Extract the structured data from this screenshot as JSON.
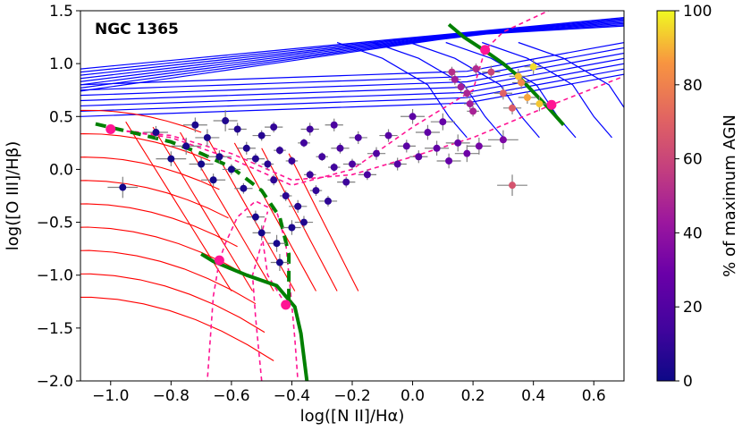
{
  "chart_data": {
    "type": "scatter",
    "title": "NGC 1365",
    "xlabel": "log([N II]/Hα)",
    "ylabel": "log([O III]/Hβ)",
    "xlim": [
      -1.1,
      0.7
    ],
    "ylim": [
      -2.0,
      1.5
    ],
    "xticks": [
      "−1.0",
      "−0.8",
      "−0.6",
      "−0.4",
      "−0.2",
      "0.0",
      "0.2",
      "0.4",
      "0.6"
    ],
    "xtick_values": [
      -1.0,
      -0.8,
      -0.6,
      -0.4,
      -0.2,
      0.0,
      0.2,
      0.4,
      0.6
    ],
    "yticks": [
      "−2.0",
      "−1.5",
      "−1.0",
      "−0.5",
      "0.0",
      "0.5",
      "1.0",
      "1.5"
    ],
    "ytick_values": [
      -2.0,
      -1.5,
      -1.0,
      -0.5,
      0.0,
      0.5,
      1.0,
      1.5
    ],
    "colorbar": {
      "label": "% of maximum AGN",
      "ticks": [
        "0",
        "20",
        "40",
        "60",
        "80",
        "100"
      ],
      "tick_values": [
        0,
        20,
        40,
        60,
        80,
        100
      ],
      "colormap": "plasma"
    },
    "colors": {
      "starburst_grid": "#ff0000",
      "agn_grid": "#0000ff",
      "mixing_curves": "#ff1493",
      "mixing_markers": "#ff1493",
      "green_sequence": "#008000",
      "error_bars": "#808080"
    },
    "green_curves": [
      {
        "style": "solid",
        "points": [
          [
            -0.7,
            -0.8
          ],
          [
            -0.66,
            -0.87
          ],
          [
            -0.55,
            -1.0
          ],
          [
            -0.45,
            -1.1
          ],
          [
            -0.39,
            -1.3
          ],
          [
            -0.37,
            -1.55
          ],
          [
            -0.35,
            -2.0
          ]
        ]
      },
      {
        "style": "dashed",
        "points": [
          [
            -1.05,
            0.43
          ],
          [
            -0.9,
            0.33
          ],
          [
            -0.8,
            0.26
          ],
          [
            -0.7,
            0.15
          ],
          [
            -0.6,
            0.02
          ],
          [
            -0.5,
            -0.2
          ],
          [
            -0.44,
            -0.45
          ],
          [
            -0.41,
            -0.8
          ],
          [
            -0.41,
            -1.25
          ]
        ]
      },
      {
        "style": "solid",
        "points": [
          [
            0.12,
            1.37
          ],
          [
            0.17,
            1.25
          ],
          [
            0.24,
            1.12
          ],
          [
            0.3,
            1.0
          ],
          [
            0.35,
            0.88
          ],
          [
            0.4,
            0.73
          ],
          [
            0.45,
            0.58
          ],
          [
            0.5,
            0.42
          ]
        ]
      }
    ],
    "mixing_points": [
      {
        "x": -1.0,
        "y": 0.38
      },
      {
        "x": -0.64,
        "y": -0.86
      },
      {
        "x": -0.42,
        "y": -1.28
      },
      {
        "x": 0.24,
        "y": 1.13
      },
      {
        "x": 0.46,
        "y": 0.61
      }
    ],
    "mixing_lines": [
      [
        [
          -1.0,
          0.38
        ],
        [
          -0.8,
          0.3
        ],
        [
          -0.6,
          0.1
        ],
        [
          -0.4,
          -0.15
        ],
        [
          -0.2,
          0.0
        ],
        [
          0.0,
          0.4
        ],
        [
          0.2,
          0.75
        ],
        [
          0.24,
          1.13
        ],
        [
          0.3,
          1.3
        ],
        [
          0.45,
          1.5
        ]
      ],
      [
        [
          -1.0,
          0.38
        ],
        [
          -0.8,
          0.32
        ],
        [
          -0.6,
          0.15
        ],
        [
          -0.4,
          -0.1
        ],
        [
          -0.2,
          -0.05
        ],
        [
          0.0,
          0.12
        ],
        [
          0.2,
          0.3
        ],
        [
          0.46,
          0.61
        ],
        [
          0.7,
          0.88
        ]
      ],
      [
        [
          -0.64,
          -0.86
        ],
        [
          -0.62,
          -0.7
        ],
        [
          -0.58,
          -0.45
        ],
        [
          -0.52,
          -0.3
        ],
        [
          -0.45,
          -0.4
        ],
        [
          -0.42,
          -0.7
        ],
        [
          -0.4,
          -1.28
        ],
        [
          -0.39,
          -1.6
        ],
        [
          -0.38,
          -2.0
        ]
      ],
      [
        [
          -0.64,
          -0.86
        ],
        [
          -0.66,
          -1.2
        ],
        [
          -0.68,
          -2.0
        ]
      ],
      [
        [
          -0.42,
          -1.28
        ],
        [
          -0.48,
          -1.0
        ],
        [
          -0.5,
          -0.6
        ],
        [
          -0.48,
          -0.4
        ]
      ],
      [
        [
          -0.5,
          -2.0
        ],
        [
          -0.52,
          -1.4
        ],
        [
          -0.53,
          -1.0
        ],
        [
          -0.5,
          -0.7
        ]
      ]
    ],
    "series": [
      {
        "points": [
          {
            "x": -0.96,
            "y": -0.17,
            "c": 2,
            "ex": 0.05,
            "ey": 0.1
          },
          {
            "x": -0.75,
            "y": 0.22,
            "c": 3,
            "ex": 0.05,
            "ey": 0.08
          },
          {
            "x": -0.68,
            "y": 0.3,
            "c": 4,
            "ex": 0.04,
            "ey": 0.08
          },
          {
            "x": -0.62,
            "y": 0.46,
            "c": 5,
            "ex": 0.04,
            "ey": 0.1
          },
          {
            "x": -0.58,
            "y": 0.38,
            "c": 6,
            "ex": 0.03,
            "ey": 0.06
          },
          {
            "x": -0.55,
            "y": 0.2,
            "c": 5,
            "ex": 0.03,
            "ey": 0.06
          },
          {
            "x": -0.52,
            "y": 0.1,
            "c": 6,
            "ex": 0.03,
            "ey": 0.05
          },
          {
            "x": -0.5,
            "y": 0.32,
            "c": 7,
            "ex": 0.03,
            "ey": 0.05
          },
          {
            "x": -0.48,
            "y": 0.05,
            "c": 8,
            "ex": 0.02,
            "ey": 0.05
          },
          {
            "x": -0.46,
            "y": -0.1,
            "c": 9,
            "ex": 0.02,
            "ey": 0.05
          },
          {
            "x": -0.44,
            "y": 0.18,
            "c": 10,
            "ex": 0.02,
            "ey": 0.04
          },
          {
            "x": -0.42,
            "y": -0.25,
            "c": 8,
            "ex": 0.02,
            "ey": 0.05
          },
          {
            "x": -0.4,
            "y": 0.08,
            "c": 12,
            "ex": 0.02,
            "ey": 0.04
          },
          {
            "x": -0.38,
            "y": -0.35,
            "c": 6,
            "ex": 0.03,
            "ey": 0.06
          },
          {
            "x": -0.36,
            "y": 0.25,
            "c": 14,
            "ex": 0.02,
            "ey": 0.04
          },
          {
            "x": -0.34,
            "y": -0.05,
            "c": 12,
            "ex": 0.02,
            "ey": 0.04
          },
          {
            "x": -0.32,
            "y": -0.2,
            "c": 10,
            "ex": 0.02,
            "ey": 0.05
          },
          {
            "x": -0.3,
            "y": 0.12,
            "c": 15,
            "ex": 0.02,
            "ey": 0.04
          },
          {
            "x": -0.28,
            "y": -0.3,
            "c": 9,
            "ex": 0.03,
            "ey": 0.05
          },
          {
            "x": -0.26,
            "y": 0.02,
            "c": 14,
            "ex": 0.02,
            "ey": 0.04
          },
          {
            "x": -0.24,
            "y": 0.2,
            "c": 17,
            "ex": 0.03,
            "ey": 0.05
          },
          {
            "x": -0.22,
            "y": -0.12,
            "c": 13,
            "ex": 0.03,
            "ey": 0.05
          },
          {
            "x": -0.2,
            "y": 0.05,
            "c": 18,
            "ex": 0.03,
            "ey": 0.05
          },
          {
            "x": -0.18,
            "y": 0.3,
            "c": 18,
            "ex": 0.03,
            "ey": 0.06
          },
          {
            "x": -0.15,
            "y": -0.05,
            "c": 17,
            "ex": 0.03,
            "ey": 0.05
          },
          {
            "x": -0.12,
            "y": 0.15,
            "c": 20,
            "ex": 0.03,
            "ey": 0.06
          },
          {
            "x": -0.08,
            "y": 0.32,
            "c": 22,
            "ex": 0.03,
            "ey": 0.06
          },
          {
            "x": -0.05,
            "y": 0.05,
            "c": 21,
            "ex": 0.03,
            "ey": 0.06
          },
          {
            "x": -0.02,
            "y": 0.22,
            "c": 23,
            "ex": 0.03,
            "ey": 0.06
          },
          {
            "x": 0.02,
            "y": 0.12,
            "c": 24,
            "ex": 0.03,
            "ey": 0.06
          },
          {
            "x": 0.05,
            "y": 0.35,
            "c": 25,
            "ex": 0.04,
            "ey": 0.07
          },
          {
            "x": 0.08,
            "y": 0.2,
            "c": 26,
            "ex": 0.04,
            "ey": 0.07
          },
          {
            "x": 0.12,
            "y": 0.08,
            "c": 27,
            "ex": 0.04,
            "ey": 0.07
          },
          {
            "x": 0.15,
            "y": 0.25,
            "c": 28,
            "ex": 0.04,
            "ey": 0.08
          },
          {
            "x": 0.18,
            "y": 0.15,
            "c": 30,
            "ex": 0.04,
            "ey": 0.08
          },
          {
            "x": -0.52,
            "y": -0.45,
            "c": 3,
            "ex": 0.03,
            "ey": 0.06
          },
          {
            "x": -0.5,
            "y": -0.6,
            "c": 2,
            "ex": 0.03,
            "ey": 0.07
          },
          {
            "x": -0.45,
            "y": -0.7,
            "c": 3,
            "ex": 0.03,
            "ey": 0.08
          },
          {
            "x": -0.4,
            "y": -0.55,
            "c": 4,
            "ex": 0.03,
            "ey": 0.07
          },
          {
            "x": -0.44,
            "y": -0.88,
            "c": 2,
            "ex": 0.03,
            "ey": 0.08
          },
          {
            "x": -0.36,
            "y": -0.5,
            "c": 5,
            "ex": 0.03,
            "ey": 0.06
          },
          {
            "x": -0.56,
            "y": -0.18,
            "c": 4,
            "ex": 0.03,
            "ey": 0.05
          },
          {
            "x": -0.6,
            "y": 0.0,
            "c": 3,
            "ex": 0.03,
            "ey": 0.05
          },
          {
            "x": -0.64,
            "y": 0.12,
            "c": 3,
            "ex": 0.04,
            "ey": 0.06
          },
          {
            "x": -0.7,
            "y": 0.05,
            "c": 2,
            "ex": 0.04,
            "ey": 0.06
          },
          {
            "x": -0.66,
            "y": -0.1,
            "c": 2,
            "ex": 0.04,
            "ey": 0.06
          },
          {
            "x": -0.8,
            "y": 0.1,
            "c": 2,
            "ex": 0.05,
            "ey": 0.07
          },
          {
            "x": -0.85,
            "y": 0.35,
            "c": 3,
            "ex": 0.04,
            "ey": 0.06
          },
          {
            "x": -0.72,
            "y": 0.42,
            "c": 4,
            "ex": 0.04,
            "ey": 0.07
          },
          {
            "x": -0.46,
            "y": 0.4,
            "c": 10,
            "ex": 0.03,
            "ey": 0.05
          },
          {
            "x": -0.34,
            "y": 0.38,
            "c": 14,
            "ex": 0.03,
            "ey": 0.06
          },
          {
            "x": -0.26,
            "y": 0.42,
            "c": 18,
            "ex": 0.03,
            "ey": 0.06
          },
          {
            "x": 0.0,
            "y": 0.5,
            "c": 24,
            "ex": 0.04,
            "ey": 0.07
          },
          {
            "x": 0.1,
            "y": 0.45,
            "c": 27,
            "ex": 0.04,
            "ey": 0.08
          },
          {
            "x": 0.22,
            "y": 0.22,
            "c": 32,
            "ex": 0.04,
            "ey": 0.08
          },
          {
            "x": 0.3,
            "y": 0.28,
            "c": 34,
            "ex": 0.05,
            "ey": 0.09
          },
          {
            "x": 0.14,
            "y": 0.85,
            "c": 45,
            "ex": 0.02,
            "ey": 0.05
          },
          {
            "x": 0.16,
            "y": 0.78,
            "c": 46,
            "ex": 0.02,
            "ey": 0.05
          },
          {
            "x": 0.18,
            "y": 0.72,
            "c": 48,
            "ex": 0.02,
            "ey": 0.05
          },
          {
            "x": 0.19,
            "y": 0.62,
            "c": 45,
            "ex": 0.02,
            "ey": 0.05
          },
          {
            "x": 0.2,
            "y": 0.55,
            "c": 47,
            "ex": 0.02,
            "ey": 0.05
          },
          {
            "x": 0.21,
            "y": 0.95,
            "c": 50,
            "ex": 0.02,
            "ey": 0.05
          },
          {
            "x": 0.13,
            "y": 0.92,
            "c": 52,
            "ex": 0.02,
            "ey": 0.05
          },
          {
            "x": 0.26,
            "y": 0.92,
            "c": 60,
            "ex": 0.03,
            "ey": 0.06
          },
          {
            "x": 0.3,
            "y": 0.72,
            "c": 70,
            "ex": 0.03,
            "ey": 0.06
          },
          {
            "x": 0.33,
            "y": 0.58,
            "c": 68,
            "ex": 0.03,
            "ey": 0.06
          },
          {
            "x": 0.36,
            "y": 0.82,
            "c": 82,
            "ex": 0.03,
            "ey": 0.06
          },
          {
            "x": 0.38,
            "y": 0.68,
            "c": 88,
            "ex": 0.03,
            "ey": 0.06
          },
          {
            "x": 0.42,
            "y": 0.62,
            "c": 93,
            "ex": 0.03,
            "ey": 0.07
          },
          {
            "x": 0.4,
            "y": 0.97,
            "c": 96,
            "ex": 0.03,
            "ey": 0.07
          },
          {
            "x": 0.35,
            "y": 0.88,
            "c": 92,
            "ex": 0.03,
            "ey": 0.07
          },
          {
            "x": 0.33,
            "y": -0.15,
            "c": 65,
            "ex": 0.05,
            "ey": 0.1
          }
        ]
      }
    ]
  }
}
